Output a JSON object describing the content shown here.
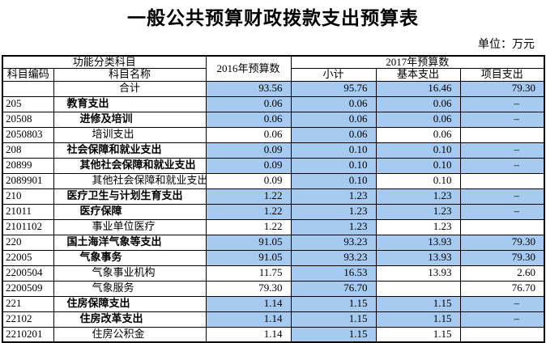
{
  "title": "一般公共预算财政拨款支出预算表",
  "unit_label": "单位：万元",
  "colors": {
    "highlight": "#A6CAF0",
    "border": "#000000"
  },
  "table": {
    "headers": {
      "functional_category": "功能分类科目",
      "code": "科目编码",
      "name": "科目名称",
      "budget_2016": "2016年预算数",
      "budget_2017": "2017年预算数",
      "subtotal": "小计",
      "basic": "基本支出",
      "project": "项目支出"
    },
    "total_row": {
      "name": "合计",
      "values": [
        "93.56",
        "95.76",
        "16.46",
        "79.30"
      ]
    },
    "rows": [
      {
        "code": "205",
        "name": "教育支出",
        "level": 1,
        "bold": true,
        "highlight": "all",
        "values": [
          "0.06",
          "0.06",
          "0.06",
          "–"
        ]
      },
      {
        "code": "20508",
        "name": "进修及培训",
        "level": 2,
        "bold": true,
        "highlight": "all",
        "values": [
          "0.06",
          "0.06",
          "0.06",
          "–"
        ]
      },
      {
        "code": "2050803",
        "name": "培训支出",
        "level": 3,
        "bold": false,
        "highlight": "subtotal",
        "values": [
          "0.06",
          "0.06",
          "0.06",
          ""
        ]
      },
      {
        "code": "208",
        "name": "社会保障和就业支出",
        "level": 1,
        "bold": true,
        "highlight": "all",
        "values": [
          "0.09",
          "0.10",
          "0.10",
          "–"
        ]
      },
      {
        "code": "20899",
        "name": "其他社会保障和就业支出",
        "level": 2,
        "bold": true,
        "highlight": "all",
        "values": [
          "0.09",
          "0.10",
          "0.10",
          "–"
        ]
      },
      {
        "code": "2089901",
        "name": "其他社会保障和就业支出",
        "level": 3,
        "bold": false,
        "highlight": "subtotal",
        "values": [
          "0.09",
          "0.10",
          "0.10",
          ""
        ]
      },
      {
        "code": "210",
        "name": "医疗卫生与计划生育支出",
        "level": 1,
        "bold": true,
        "highlight": "all",
        "values": [
          "1.22",
          "1.23",
          "1.23",
          "–"
        ]
      },
      {
        "code": "21011",
        "name": "医疗保障",
        "level": 2,
        "bold": true,
        "highlight": "all",
        "values": [
          "1.22",
          "1.23",
          "1.23",
          "–"
        ]
      },
      {
        "code": "2101102",
        "name": "事业单位医疗",
        "level": 3,
        "bold": false,
        "highlight": "subtotal",
        "values": [
          "1.22",
          "1.23",
          "1.23",
          ""
        ]
      },
      {
        "code": "220",
        "name": "国土海洋气象等支出",
        "level": 1,
        "bold": true,
        "highlight": "all",
        "values": [
          "91.05",
          "93.23",
          "13.93",
          "79.30"
        ]
      },
      {
        "code": "22005",
        "name": "气象事务",
        "level": 2,
        "bold": true,
        "highlight": "all",
        "values": [
          "91.05",
          "93.23",
          "13.93",
          "79.30"
        ]
      },
      {
        "code": "2200504",
        "name": "气象事业机构",
        "level": 3,
        "bold": false,
        "highlight": "subtotal",
        "values": [
          "11.75",
          "16.53",
          "13.93",
          "2.60"
        ]
      },
      {
        "code": "2200509",
        "name": "气象服务",
        "level": 3,
        "bold": false,
        "highlight": "subtotal",
        "values": [
          "79.30",
          "76.70",
          "",
          "76.70"
        ]
      },
      {
        "code": "221",
        "name": "住房保障支出",
        "level": 1,
        "bold": true,
        "highlight": "all",
        "values": [
          "1.14",
          "1.15",
          "1.15",
          "–"
        ]
      },
      {
        "code": "22102",
        "name": "住房改革支出",
        "level": 2,
        "bold": true,
        "highlight": "all",
        "values": [
          "1.14",
          "1.15",
          "1.15",
          "–"
        ]
      },
      {
        "code": "2210201",
        "name": "住房公积金",
        "level": 3,
        "bold": false,
        "highlight": "subtotal",
        "values": [
          "1.14",
          "1.15",
          "1.15",
          ""
        ]
      }
    ]
  }
}
